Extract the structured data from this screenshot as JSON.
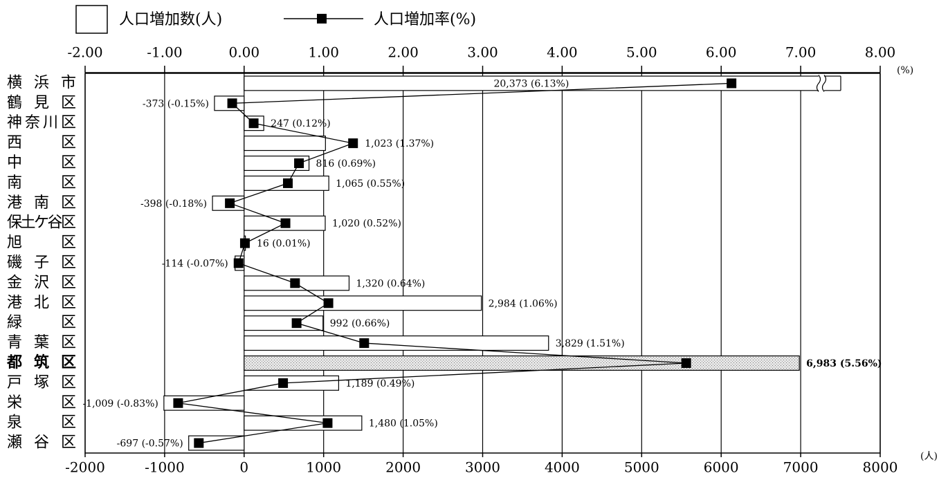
{
  "chart_data": {
    "type": "bar-line",
    "orientation": "horizontal",
    "categories": [
      "横浜市",
      "鶴見区",
      "神奈川区",
      "西区",
      "中区",
      "南区",
      "港南区",
      "保土ケ谷区",
      "旭区",
      "磯子区",
      "金沢区",
      "港北区",
      "緑区",
      "青葉区",
      "都筑区",
      "戸塚区",
      "栄区",
      "泉区",
      "瀬谷区"
    ],
    "series": [
      {
        "name": "人口増加数(人)",
        "type": "bar",
        "color": "#ffffff",
        "values": [
          20373,
          -373,
          247,
          1023,
          816,
          1065,
          -398,
          1020,
          16,
          -114,
          1320,
          2984,
          992,
          3829,
          6983,
          1189,
          -1009,
          1480,
          -697
        ],
        "value_labels": [
          "20,373",
          "-373",
          "247",
          "1,023",
          "816",
          "1,065",
          "-398",
          "1,020",
          "16",
          "-114",
          "1,320",
          "2,984",
          "992",
          "3,829",
          "6,983",
          "1,189",
          "-1,009",
          "1,480",
          "-697"
        ]
      },
      {
        "name": "人口増加率(%)",
        "type": "line",
        "axis": "x2",
        "color": "#000000",
        "values": [
          6.13,
          -0.15,
          0.12,
          1.37,
          0.69,
          0.55,
          -0.18,
          0.52,
          0.01,
          -0.07,
          0.64,
          1.06,
          0.66,
          1.51,
          5.56,
          0.49,
          -0.83,
          1.05,
          -0.57
        ],
        "value_labels": [
          "(6.13%)",
          "(-0.15%)",
          "(0.12%)",
          "(1.37%)",
          "(0.69%)",
          "(0.55%)",
          "(-0.18%)",
          "(0.52%)",
          "(0.01%)",
          "(-0.07%)",
          "(0.64%)",
          "(1.06%)",
          "(0.66%)",
          "(1.51%)",
          "(5.56%)",
          "(0.49%)",
          "(-0.83%)",
          "(1.05%)",
          "(-0.57%)"
        ]
      }
    ],
    "highlight": "都筑区",
    "xlim": [
      -2000,
      8000
    ],
    "xticks": [
      -2000,
      -1000,
      0,
      1000,
      2000,
      3000,
      4000,
      5000,
      6000,
      7000,
      8000
    ],
    "x_unit": "(人)",
    "x2lim": [
      -2,
      8
    ],
    "x2ticks": [
      {
        "value": -2,
        "label": "-2.00"
      },
      {
        "value": -1,
        "label": "-1.00"
      },
      {
        "value": 0,
        "label": "0.00"
      },
      {
        "value": 1,
        "label": "1.00"
      },
      {
        "value": 2,
        "label": "2.00"
      },
      {
        "value": 3,
        "label": "3.00"
      },
      {
        "value": 4,
        "label": "4.00"
      },
      {
        "value": 5,
        "label": "5.00"
      },
      {
        "value": 6,
        "label": "6.00"
      },
      {
        "value": 7,
        "label": "7.00"
      },
      {
        "value": 8,
        "label": "8.00"
      }
    ],
    "x2_unit": "(%)",
    "grid": true
  }
}
